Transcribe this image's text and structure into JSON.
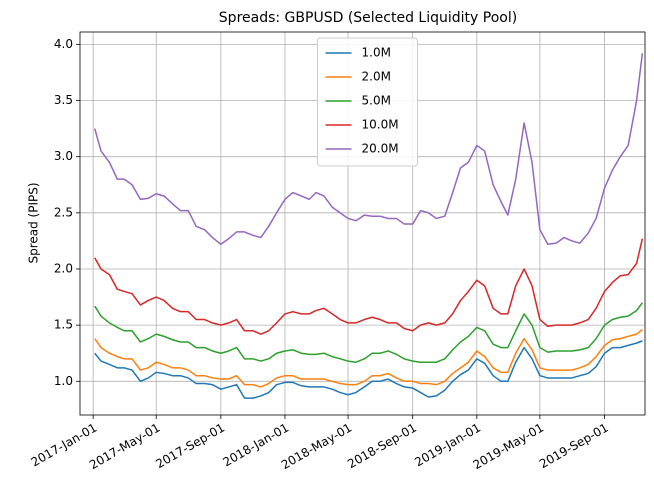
{
  "chart_data": {
    "type": "line",
    "title": "Spreads: GBPUSD (Selected Liquidity Pool)",
    "y_label": "Spread (PIPS)",
    "x": [
      "2017-01-04",
      "2017-01-16",
      "2017-02-01",
      "2017-02-16",
      "2017-03-01",
      "2017-03-16",
      "2017-04-01",
      "2017-04-16",
      "2017-05-01",
      "2017-05-16",
      "2017-06-01",
      "2017-06-16",
      "2017-07-01",
      "2017-07-16",
      "2017-08-01",
      "2017-08-16",
      "2017-09-01",
      "2017-09-16",
      "2017-10-01",
      "2017-10-16",
      "2017-11-01",
      "2017-11-16",
      "2017-12-01",
      "2017-12-16",
      "2018-01-01",
      "2018-01-16",
      "2018-02-01",
      "2018-02-16",
      "2018-03-01",
      "2018-03-16",
      "2018-04-01",
      "2018-04-16",
      "2018-05-01",
      "2018-05-16",
      "2018-06-01",
      "2018-06-16",
      "2018-07-01",
      "2018-07-16",
      "2018-08-01",
      "2018-08-16",
      "2018-09-01",
      "2018-09-16",
      "2018-10-01",
      "2018-10-16",
      "2018-11-01",
      "2018-11-16",
      "2018-12-01",
      "2018-12-16",
      "2019-01-01",
      "2019-01-16",
      "2019-02-01",
      "2019-02-16",
      "2019-03-01",
      "2019-03-16",
      "2019-04-01",
      "2019-04-16",
      "2019-05-01",
      "2019-05-16",
      "2019-06-01",
      "2019-06-16",
      "2019-07-01",
      "2019-07-16",
      "2019-08-01",
      "2019-08-16",
      "2019-09-01",
      "2019-09-16",
      "2019-10-01",
      "2019-10-16",
      "2019-11-01",
      "2019-11-12"
    ],
    "series": [
      {
        "name": "1.0M",
        "color": "#1f77b4",
        "values": [
          1.25,
          1.18,
          1.15,
          1.12,
          1.12,
          1.1,
          1.0,
          1.03,
          1.08,
          1.07,
          1.05,
          1.05,
          1.03,
          0.98,
          0.98,
          0.97,
          0.93,
          0.95,
          0.97,
          0.85,
          0.85,
          0.87,
          0.9,
          0.97,
          0.99,
          0.99,
          0.96,
          0.95,
          0.95,
          0.95,
          0.93,
          0.9,
          0.88,
          0.9,
          0.95,
          1.0,
          1.0,
          1.02,
          0.98,
          0.95,
          0.94,
          0.9,
          0.86,
          0.87,
          0.92,
          1.0,
          1.06,
          1.1,
          1.2,
          1.16,
          1.05,
          1.0,
          1.0,
          1.17,
          1.3,
          1.2,
          1.05,
          1.03,
          1.03,
          1.03,
          1.03,
          1.05,
          1.07,
          1.13,
          1.25,
          1.3,
          1.3,
          1.32,
          1.34,
          1.36
        ]
      },
      {
        "name": "2.0M",
        "color": "#ff7f0e",
        "values": [
          1.38,
          1.3,
          1.25,
          1.22,
          1.2,
          1.2,
          1.1,
          1.12,
          1.17,
          1.15,
          1.12,
          1.12,
          1.1,
          1.05,
          1.05,
          1.03,
          1.02,
          1.02,
          1.05,
          0.97,
          0.97,
          0.95,
          0.98,
          1.03,
          1.05,
          1.05,
          1.02,
          1.02,
          1.02,
          1.02,
          1.0,
          0.98,
          0.97,
          0.97,
          1.0,
          1.05,
          1.05,
          1.07,
          1.03,
          1.0,
          1.0,
          0.98,
          0.98,
          0.97,
          1.0,
          1.07,
          1.12,
          1.17,
          1.27,
          1.22,
          1.12,
          1.08,
          1.08,
          1.25,
          1.38,
          1.28,
          1.12,
          1.1,
          1.1,
          1.1,
          1.1,
          1.12,
          1.15,
          1.22,
          1.32,
          1.37,
          1.38,
          1.4,
          1.42,
          1.46
        ]
      },
      {
        "name": "5.0M",
        "color": "#2ca02c",
        "values": [
          1.67,
          1.58,
          1.52,
          1.48,
          1.45,
          1.45,
          1.35,
          1.38,
          1.42,
          1.4,
          1.37,
          1.35,
          1.35,
          1.3,
          1.3,
          1.27,
          1.25,
          1.27,
          1.3,
          1.2,
          1.2,
          1.18,
          1.2,
          1.25,
          1.27,
          1.28,
          1.25,
          1.24,
          1.24,
          1.25,
          1.22,
          1.2,
          1.18,
          1.17,
          1.2,
          1.25,
          1.25,
          1.27,
          1.24,
          1.2,
          1.18,
          1.17,
          1.17,
          1.17,
          1.2,
          1.28,
          1.35,
          1.4,
          1.48,
          1.45,
          1.33,
          1.3,
          1.3,
          1.45,
          1.6,
          1.5,
          1.3,
          1.26,
          1.27,
          1.27,
          1.27,
          1.28,
          1.3,
          1.38,
          1.5,
          1.55,
          1.57,
          1.58,
          1.63,
          1.7
        ]
      },
      {
        "name": "10.0M",
        "color": "#d62728",
        "values": [
          2.1,
          2.0,
          1.95,
          1.82,
          1.8,
          1.78,
          1.68,
          1.72,
          1.75,
          1.72,
          1.65,
          1.62,
          1.62,
          1.55,
          1.55,
          1.52,
          1.5,
          1.52,
          1.55,
          1.45,
          1.45,
          1.42,
          1.45,
          1.52,
          1.6,
          1.62,
          1.6,
          1.6,
          1.63,
          1.65,
          1.6,
          1.55,
          1.52,
          1.52,
          1.55,
          1.57,
          1.55,
          1.52,
          1.52,
          1.47,
          1.45,
          1.5,
          1.52,
          1.5,
          1.52,
          1.6,
          1.72,
          1.8,
          1.9,
          1.85,
          1.65,
          1.6,
          1.6,
          1.85,
          2.0,
          1.85,
          1.55,
          1.49,
          1.5,
          1.5,
          1.5,
          1.52,
          1.55,
          1.65,
          1.8,
          1.88,
          1.94,
          1.95,
          2.05,
          2.27
        ]
      },
      {
        "name": "20.0M",
        "color": "#9467bd",
        "values": [
          3.25,
          3.05,
          2.95,
          2.8,
          2.8,
          2.75,
          2.62,
          2.63,
          2.67,
          2.65,
          2.58,
          2.52,
          2.52,
          2.38,
          2.35,
          2.28,
          2.22,
          2.27,
          2.33,
          2.33,
          2.3,
          2.28,
          2.38,
          2.5,
          2.62,
          2.68,
          2.65,
          2.62,
          2.68,
          2.65,
          2.55,
          2.5,
          2.45,
          2.43,
          2.48,
          2.47,
          2.47,
          2.45,
          2.45,
          2.4,
          2.4,
          2.52,
          2.5,
          2.45,
          2.47,
          2.68,
          2.9,
          2.95,
          3.1,
          3.05,
          2.75,
          2.6,
          2.48,
          2.8,
          3.3,
          2.95,
          2.35,
          2.22,
          2.23,
          2.28,
          2.25,
          2.23,
          2.32,
          2.45,
          2.72,
          2.88,
          3.0,
          3.1,
          3.5,
          3.92
        ]
      }
    ],
    "xlim": [
      "2016-12-07",
      "2019-11-17"
    ],
    "xticks": [
      {
        "value": "2017-01-01",
        "label": "2017-Jan-01"
      },
      {
        "value": "2017-05-01",
        "label": "2017-May-01"
      },
      {
        "value": "2017-09-01",
        "label": "2017-Sep-01"
      },
      {
        "value": "2018-01-01",
        "label": "2018-Jan-01"
      },
      {
        "value": "2018-05-01",
        "label": "2018-May-01"
      },
      {
        "value": "2018-09-01",
        "label": "2018-Sep-01"
      },
      {
        "value": "2019-01-01",
        "label": "2019-Jan-01"
      },
      {
        "value": "2019-05-01",
        "label": "2019-May-01"
      },
      {
        "value": "2019-09-01",
        "label": "2019-Sep-01"
      }
    ],
    "ylim": [
      0.7,
      4.11
    ],
    "yticks": [
      {
        "value": 1,
        "label": "1.0"
      },
      {
        "value": 1.5,
        "label": "1.5"
      },
      {
        "value": 2,
        "label": "2.0"
      },
      {
        "value": 2.5,
        "label": "2.5"
      },
      {
        "value": 3,
        "label": "3.0"
      },
      {
        "value": 3.5,
        "label": "3.5"
      },
      {
        "value": 4,
        "label": "4.0"
      }
    ],
    "grid": true,
    "legend": "upper center"
  }
}
